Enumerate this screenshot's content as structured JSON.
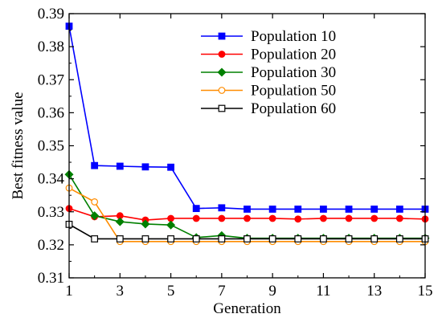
{
  "chart_data": {
    "type": "line",
    "title": "",
    "xlabel": "Generation",
    "ylabel": "Best fitness value",
    "xlim": [
      1,
      15
    ],
    "ylim": [
      0.31,
      0.39
    ],
    "xticks": [
      1,
      3,
      5,
      7,
      9,
      11,
      13,
      15
    ],
    "yticks": [
      0.31,
      0.32,
      0.33,
      0.34,
      0.35,
      0.36,
      0.37,
      0.38,
      0.39
    ],
    "xtick_labels": [
      "1",
      "3",
      "5",
      "7",
      "9",
      "11",
      "13",
      "15"
    ],
    "ytick_labels": [
      "0.31",
      "0.32",
      "0.33",
      "0.34",
      "0.35",
      "0.36",
      "0.37",
      "0.38",
      "0.39"
    ],
    "grid": false,
    "legend_position": "top-right",
    "x": [
      1,
      2,
      3,
      4,
      5,
      6,
      7,
      8,
      9,
      10,
      11,
      12,
      13,
      14,
      15
    ],
    "series": [
      {
        "name": "Population 10",
        "color": "#0000ff",
        "marker": "square-filled",
        "values": [
          0.3862,
          0.344,
          0.3438,
          0.3436,
          0.3435,
          0.331,
          0.3312,
          0.3308,
          0.3308,
          0.3308,
          0.3308,
          0.3308,
          0.3308,
          0.3308,
          0.3308
        ]
      },
      {
        "name": "Population 20",
        "color": "#ff0000",
        "marker": "circle-filled",
        "values": [
          0.331,
          0.3285,
          0.3288,
          0.3275,
          0.328,
          0.328,
          0.328,
          0.328,
          0.328,
          0.3278,
          0.328,
          0.328,
          0.328,
          0.328,
          0.3278
        ]
      },
      {
        "name": "Population 30",
        "color": "#008000",
        "marker": "diamond-filled",
        "values": [
          0.3413,
          0.3288,
          0.327,
          0.3263,
          0.326,
          0.3222,
          0.3228,
          0.322,
          0.322,
          0.322,
          0.322,
          0.322,
          0.322,
          0.322,
          0.322
        ]
      },
      {
        "name": "Population 50",
        "color": "#ff8c00",
        "marker": "circle-open",
        "values": [
          0.3372,
          0.333,
          0.321,
          0.321,
          0.321,
          0.321,
          0.321,
          0.321,
          0.321,
          0.321,
          0.321,
          0.321,
          0.321,
          0.321,
          0.321
        ]
      },
      {
        "name": "Population 60",
        "color": "#000000",
        "marker": "square-open",
        "values": [
          0.3262,
          0.3218,
          0.3218,
          0.3218,
          0.3218,
          0.3218,
          0.3218,
          0.3218,
          0.3218,
          0.3218,
          0.3218,
          0.3218,
          0.3218,
          0.3218,
          0.3218
        ]
      }
    ]
  }
}
